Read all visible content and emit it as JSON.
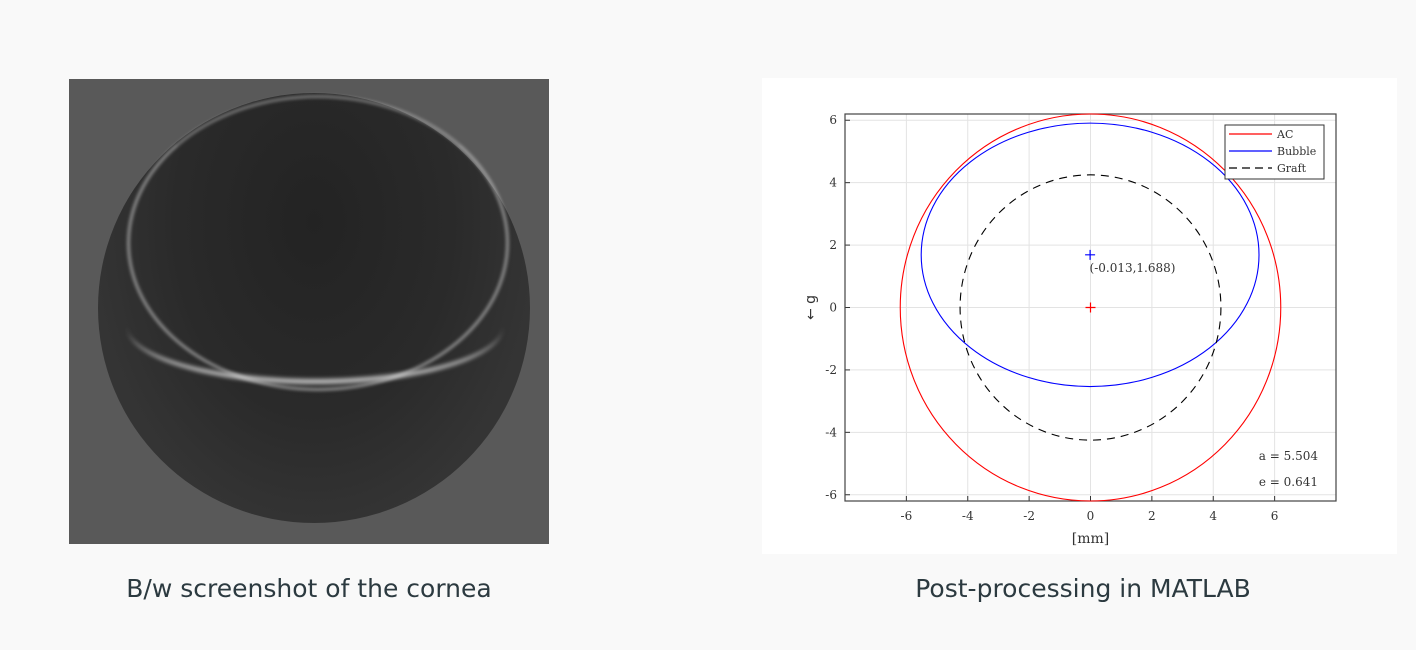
{
  "left_figure": {
    "caption": "B/w screenshot of the cornea"
  },
  "right_figure": {
    "caption": "Post-processing in MATLAB"
  },
  "chart_data": {
    "type": "line",
    "xlabel": "[mm]",
    "ylabel": "← g",
    "xlim": [
      -8,
      8
    ],
    "ylim": [
      -6.2,
      6.2
    ],
    "xticks": [
      -6,
      -4,
      -2,
      0,
      2,
      4,
      6
    ],
    "yticks": [
      -6,
      -4,
      -2,
      0,
      2,
      4,
      6
    ],
    "grid": true,
    "legend_position": "top-right",
    "series": [
      {
        "name": "AC",
        "shape": "circle",
        "center": [
          0,
          0
        ],
        "radius": 6.2,
        "color": "#ff0000",
        "dash": false
      },
      {
        "name": "Bubble",
        "shape": "ellipse",
        "center": [
          -0.013,
          1.688
        ],
        "semi_axes": [
          5.504,
          4.22
        ],
        "color": "#0000ff",
        "dash": false
      },
      {
        "name": "Graft",
        "shape": "circle",
        "center": [
          0,
          0
        ],
        "radius": 4.25,
        "color": "#000000",
        "dash": true
      }
    ],
    "markers": [
      {
        "point": [
          0,
          0
        ],
        "color": "#ff0000"
      },
      {
        "point": [
          -0.013,
          1.688
        ],
        "color": "#0000ff"
      }
    ],
    "annotations": {
      "center_label": "(-0.013,1.688)",
      "a_label": "a = 5.504",
      "e_label": "e = 0.641"
    }
  }
}
